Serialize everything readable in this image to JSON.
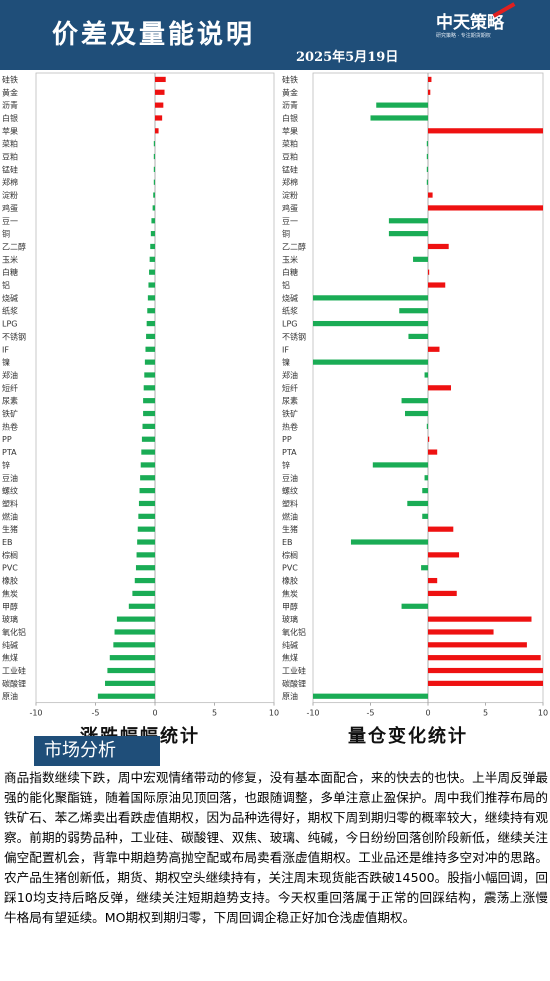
{
  "header": {
    "title": "价差及量能说明",
    "date": "2025年5月19日",
    "logo_main": "中天策略",
    "logo_sub": "研究策略 · 专注期货期权"
  },
  "chart_data": [
    {
      "type": "bar",
      "orientation": "horizontal",
      "title": "涨跌幅幅统计",
      "categories": [
        "硅铁",
        "黄金",
        "沥青",
        "白银",
        "苹果",
        "菜粕",
        "豆粕",
        "锰硅",
        "郑棉",
        "淀粉",
        "鸡蛋",
        "豆一",
        "铜",
        "乙二醇",
        "玉米",
        "白糖",
        "铝",
        "烧碱",
        "纸浆",
        "LPG",
        "不锈钢",
        "IF",
        "镍",
        "郑油",
        "短纤",
        "尿素",
        "铁矿",
        "热卷",
        "PP",
        "PTA",
        "锌",
        "豆油",
        "螺纹",
        "塑料",
        "燃油",
        "生猪",
        "EB",
        "棕榈",
        "PVC",
        "橡胶",
        "焦炭",
        "甲醇",
        "玻璃",
        "氧化铝",
        "纯碱",
        "焦煤",
        "工业硅",
        "碳酸锂",
        "原油"
      ],
      "values": [
        0.9,
        0.8,
        0.7,
        0.6,
        0.3,
        -0.1,
        -0.1,
        -0.1,
        -0.1,
        -0.15,
        -0.2,
        -0.3,
        -0.35,
        -0.4,
        -0.45,
        -0.5,
        -0.55,
        -0.6,
        -0.65,
        -0.7,
        -0.75,
        -0.8,
        -0.85,
        -0.9,
        -0.95,
        -1.0,
        -1.0,
        -1.05,
        -1.1,
        -1.15,
        -1.2,
        -1.25,
        -1.3,
        -1.35,
        -1.4,
        -1.45,
        -1.5,
        -1.55,
        -1.6,
        -1.7,
        -1.9,
        -2.2,
        -3.2,
        -3.4,
        -3.5,
        -3.8,
        -4.0,
        -4.2,
        -4.8
      ],
      "colors": {
        "positive": "#ee1111",
        "negative": "#1aac55"
      },
      "xlim": [
        -10,
        10
      ],
      "xticks": [
        -10,
        -5,
        0,
        5,
        10
      ]
    },
    {
      "type": "bar",
      "orientation": "horizontal",
      "title": "量仓变化统计",
      "categories": [
        "硅铁",
        "黄金",
        "沥青",
        "白银",
        "苹果",
        "菜粕",
        "豆粕",
        "锰硅",
        "郑棉",
        "淀粉",
        "鸡蛋",
        "豆一",
        "铜",
        "乙二醇",
        "玉米",
        "白糖",
        "铝",
        "烧碱",
        "纸浆",
        "LPG",
        "不锈钢",
        "IF",
        "镍",
        "郑油",
        "短纤",
        "尿素",
        "铁矿",
        "热卷",
        "PP",
        "PTA",
        "锌",
        "豆油",
        "螺纹",
        "塑料",
        "燃油",
        "生猪",
        "EB",
        "棕榈",
        "PVC",
        "橡胶",
        "焦炭",
        "甲醇",
        "玻璃",
        "氧化铝",
        "纯碱",
        "焦煤",
        "工业硅",
        "碳酸锂",
        "原油"
      ],
      "values": [
        0.3,
        0.2,
        -4.5,
        -5.0,
        10.0,
        -0.1,
        -0.1,
        -0.05,
        -0.05,
        0.4,
        10.0,
        -3.4,
        -3.4,
        1.8,
        -1.3,
        0.1,
        1.5,
        -10.0,
        -2.5,
        -10.0,
        -1.7,
        1.0,
        -10.0,
        -0.3,
        2.0,
        -2.3,
        -2.0,
        -0.1,
        0.1,
        0.8,
        -4.8,
        -0.3,
        -0.5,
        -1.8,
        -0.5,
        2.2,
        -6.7,
        2.7,
        -0.6,
        0.8,
        2.5,
        -2.3,
        9.0,
        5.7,
        8.6,
        9.8,
        10.0,
        10.0,
        -10.0
      ],
      "colors": {
        "positive": "#ee1111",
        "negative": "#1aac55"
      },
      "xlim": [
        -10,
        10
      ],
      "xticks": [
        -10,
        -5,
        0,
        5,
        10
      ]
    }
  ],
  "analysis": {
    "heading": "市场分析",
    "text": "商品指数继续下跌，周中宏观情绪带动的修复，没有基本面配合，来的快去的也快。上半周反弹最强的能化聚酯链，随着国际原油见顶回落，也跟随调整，多单注意止盈保护。周中我们推荐布局的铁矿石、苯乙烯卖出看跌虚值期权，因为品种选得好，期权下周到期归零的概率较大，继续持有观察。前期的弱势品种，工业硅、碳酸锂、双焦、玻璃、纯碱，今日纷纷回落创阶段新低，继续关注偏空配置机会，背靠中期趋势高抛空配或布局卖看涨虚值期权。工业品还是维持多空对冲的思路。农产品生猪创新低，期货、期权空头继续持有，关注周末现货能否跌破14500。股指小幅回调，回踩10均支持后略反弹，继续关注短期趋势支持。今天权重回落属于正常的回踩结构，震荡上涨慢牛格局有望延续。MO期权到期归零，下周回调企稳正好加仓浅虚值期权。"
  }
}
